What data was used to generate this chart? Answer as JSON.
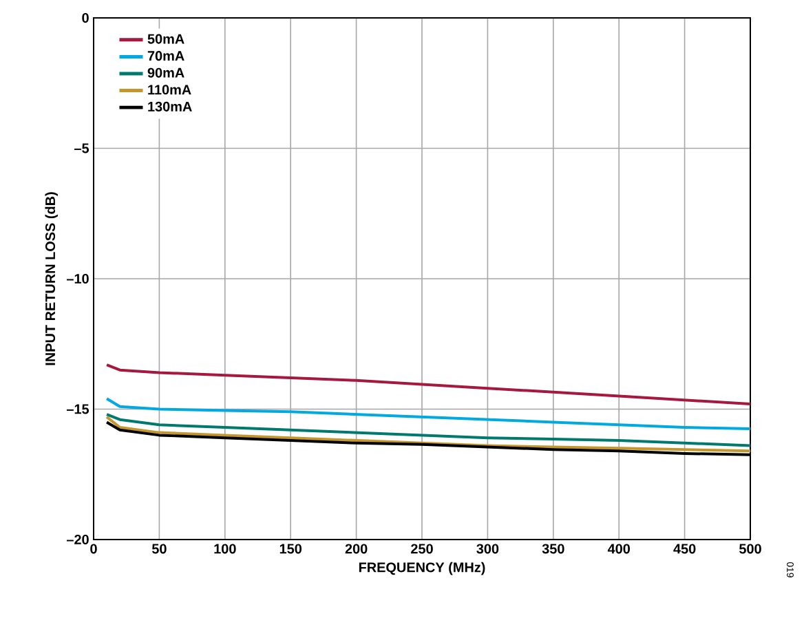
{
  "chart_data": {
    "type": "line",
    "xlabel": "FREQUENCY (MHz)",
    "ylabel": "INPUT RETURN LOSS (dB)",
    "x": [
      10,
      20,
      50,
      100,
      150,
      200,
      250,
      300,
      350,
      400,
      450,
      500
    ],
    "series": [
      {
        "name": "50mA",
        "color": "#a6193f",
        "values": [
          -13.3,
          -13.5,
          -13.6,
          -13.7,
          -13.8,
          -13.9,
          -14.05,
          -14.2,
          -14.35,
          -14.5,
          -14.65,
          -14.8
        ]
      },
      {
        "name": "70mA",
        "color": "#00a9e0",
        "values": [
          -14.6,
          -14.9,
          -15.0,
          -15.05,
          -15.1,
          -15.2,
          -15.3,
          -15.4,
          -15.5,
          -15.6,
          -15.7,
          -15.75
        ]
      },
      {
        "name": "90mA",
        "color": "#007a6e",
        "values": [
          -15.2,
          -15.4,
          -15.6,
          -15.7,
          -15.8,
          -15.9,
          -16.0,
          -16.1,
          -16.15,
          -16.2,
          -16.3,
          -16.4
        ]
      },
      {
        "name": "110mA",
        "color": "#c4962c",
        "values": [
          -15.3,
          -15.7,
          -15.9,
          -16.0,
          -16.1,
          -16.2,
          -16.3,
          -16.4,
          -16.45,
          -16.5,
          -16.55,
          -16.6
        ]
      },
      {
        "name": "130mA",
        "color": "#000000",
        "values": [
          -15.5,
          -15.8,
          -16.0,
          -16.1,
          -16.2,
          -16.3,
          -16.35,
          -16.45,
          -16.55,
          -16.6,
          -16.7,
          -16.75
        ]
      }
    ],
    "xlim": [
      0,
      500
    ],
    "ylim": [
      -20,
      0
    ],
    "xticks": [
      0,
      50,
      100,
      150,
      200,
      250,
      300,
      350,
      400,
      450,
      500
    ],
    "yticks": [
      {
        "value": -20,
        "label": "–20"
      },
      {
        "value": -15,
        "label": "–15"
      },
      {
        "value": -10,
        "label": "–10"
      },
      {
        "value": -5,
        "label": "–5"
      },
      0
    ],
    "grid": true,
    "legend": "top left",
    "line_style": "solid",
    "marker": "none",
    "annotations": [
      "019"
    ]
  }
}
